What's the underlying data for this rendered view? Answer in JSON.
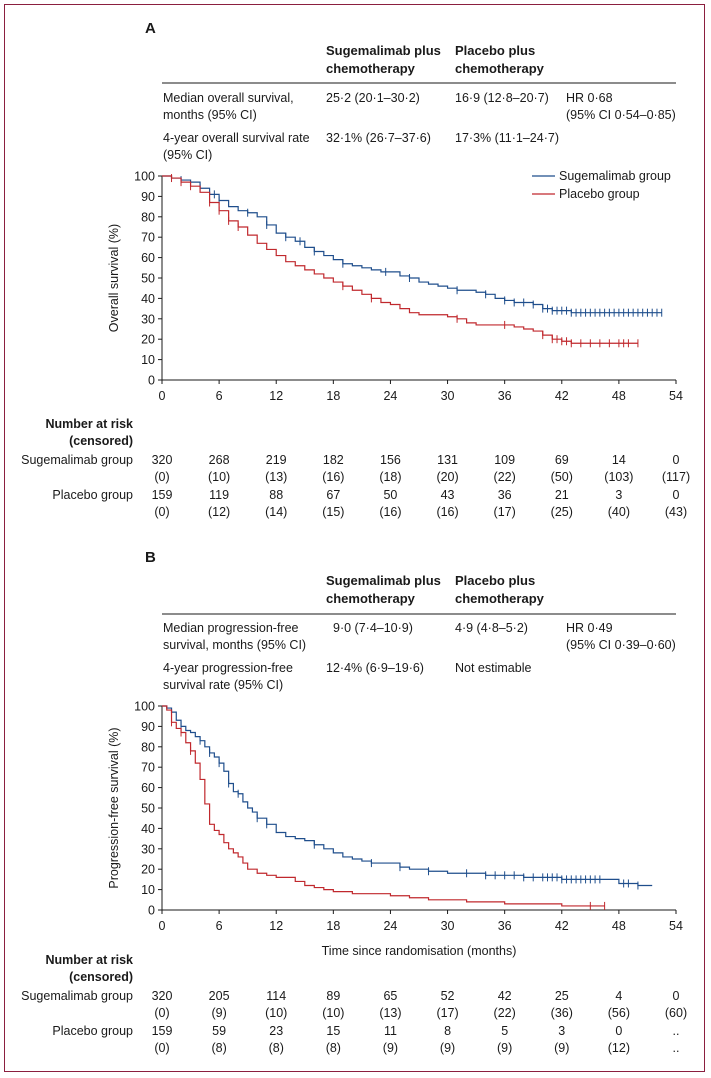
{
  "panels": [
    {
      "letter": "A",
      "table": {
        "col1": [
          "Sugemalimab plus",
          "chemotherapy"
        ],
        "col2": [
          "Placebo plus",
          "chemotherapy"
        ],
        "rows": [
          {
            "label": [
              "Median overall survival,",
              "months (95% CI)"
            ],
            "v1": "25·2 (20·1–30·2)",
            "v2": "16·9 (12·8–20·7)",
            "hr": [
              "HR 0·68",
              "(95% CI 0·54–0·85)"
            ]
          },
          {
            "label": [
              "4-year overall survival rate",
              "(95% CI)"
            ],
            "v1": "32·1% (26·7–37·6)",
            "v2": "17·3% (11·1–24·7)",
            "hr": [
              "",
              ""
            ]
          }
        ]
      },
      "legend": [
        "Sugemalimab group",
        "Placebo group"
      ],
      "risk_header": [
        "Number at risk",
        "(censored)"
      ],
      "risk": [
        {
          "group": "Sugemalimab group",
          "n": [
            "320",
            "268",
            "219",
            "182",
            "156",
            "131",
            "109",
            "69",
            "14",
            "0"
          ],
          "c": [
            "(0)",
            "(10)",
            "(13)",
            "(16)",
            "(18)",
            "(20)",
            "(22)",
            "(50)",
            "(103)",
            "(117)"
          ]
        },
        {
          "group": "Placebo group",
          "n": [
            "159",
            "119",
            "88",
            "67",
            "50",
            "43",
            "36",
            "21",
            "3",
            "0"
          ],
          "c": [
            "(0)",
            "(12)",
            "(14)",
            "(15)",
            "(16)",
            "(16)",
            "(17)",
            "(25)",
            "(40)",
            "(43)"
          ]
        }
      ]
    },
    {
      "letter": "B",
      "table": {
        "col1": [
          "Sugemalimab plus",
          "chemotherapy"
        ],
        "col2": [
          "Placebo plus",
          "chemotherapy"
        ],
        "rows": [
          {
            "label": [
              "Median progression-free",
              "survival, months (95% CI)"
            ],
            "v1": "9·0 (7·4–10·9)",
            "v2": "4·9 (4·8–5·2)",
            "hr": [
              "HR 0·49",
              "(95% CI 0·39–0·60)"
            ]
          },
          {
            "label": [
              "4-year progression-free",
              "survival rate (95% CI)"
            ],
            "v1": "12·4% (6·9–19·6)",
            "v2": "Not estimable",
            "hr": [
              "",
              ""
            ]
          }
        ]
      },
      "legend": [],
      "risk_header": [
        "Number at risk",
        "(censored)"
      ],
      "risk": [
        {
          "group": "Sugemalimab group",
          "n": [
            "320",
            "205",
            "114",
            "89",
            "65",
            "52",
            "42",
            "25",
            "4",
            "0"
          ],
          "c": [
            "(0)",
            "(9)",
            "(10)",
            "(10)",
            "(13)",
            "(17)",
            "(22)",
            "(36)",
            "(56)",
            "(60)"
          ]
        },
        {
          "group": "Placebo group",
          "n": [
            "159",
            "59",
            "23",
            "15",
            "11",
            "8",
            "5",
            "3",
            "0",
            ".."
          ],
          "c": [
            "(0)",
            "(8)",
            "(8)",
            "(8)",
            "(9)",
            "(9)",
            "(9)",
            "(9)",
            "(12)",
            ".."
          ]
        }
      ]
    }
  ],
  "colors": {
    "sugemalimab": "#1f4e8c",
    "placebo": "#c0282d",
    "frame": "#8b1f3f"
  },
  "chart_data": [
    {
      "type": "line",
      "title": "A",
      "xlabel": "",
      "ylabel": "Overall survival (%)",
      "xlim": [
        0,
        54
      ],
      "ylim": [
        0,
        100
      ],
      "xticks": [
        0,
        6,
        12,
        18,
        24,
        30,
        36,
        42,
        48,
        54
      ],
      "yticks": [
        0,
        10,
        20,
        30,
        40,
        50,
        60,
        70,
        80,
        90,
        100
      ],
      "series": [
        {
          "name": "Sugemalimab group",
          "color": "#1f4e8c",
          "x": [
            0,
            1,
            2,
            3,
            4,
            5,
            6,
            7,
            8,
            9,
            10,
            11,
            12,
            13,
            14,
            15,
            16,
            17,
            18,
            19,
            20,
            21,
            22,
            23,
            24,
            25,
            26,
            27,
            28,
            29,
            30,
            31,
            32,
            33,
            34,
            35,
            36,
            37,
            38,
            39,
            40,
            41,
            42,
            43,
            44,
            45,
            46,
            48,
            50,
            52.5
          ],
          "y": [
            100,
            99,
            98,
            97,
            94,
            91,
            88,
            85,
            83,
            82,
            80,
            76,
            72,
            70,
            68,
            65,
            63,
            61,
            59,
            57,
            56,
            55,
            54,
            53,
            53,
            51,
            50,
            48,
            47,
            46,
            45,
            44,
            44,
            43,
            42,
            40,
            39,
            38,
            38,
            37,
            35,
            34,
            34,
            33,
            33,
            33,
            33,
            33,
            33,
            33
          ]
        },
        {
          "name": "Placebo group",
          "color": "#c0282d",
          "x": [
            0,
            1,
            2,
            3,
            4,
            5,
            6,
            7,
            8,
            9,
            10,
            11,
            12,
            13,
            14,
            15,
            16,
            17,
            18,
            19,
            20,
            21,
            22,
            23,
            24,
            25,
            26,
            27,
            28,
            29,
            30,
            31,
            32,
            33,
            34,
            35,
            36,
            37,
            38,
            39,
            40,
            41,
            42,
            43,
            44,
            45,
            46,
            48,
            50
          ],
          "y": [
            100,
            99,
            97,
            95,
            92,
            87,
            83,
            78,
            75,
            71,
            67,
            64,
            61,
            58,
            56,
            54,
            52,
            50,
            48,
            46,
            44,
            42,
            40,
            38,
            37,
            35,
            33,
            32,
            32,
            32,
            31,
            30,
            28,
            27,
            27,
            27,
            27,
            26,
            25,
            24,
            22,
            20,
            19,
            18,
            18,
            18,
            18,
            18,
            18
          ]
        }
      ],
      "censor_x": {
        "Sugemalimab group": [
          2,
          4,
          5.5,
          6,
          9,
          11,
          13,
          14.5,
          16,
          19,
          23.5,
          26,
          31,
          34,
          36,
          37,
          38,
          39,
          40,
          40.5,
          41,
          41.5,
          42,
          42.5,
          43,
          43.5,
          44,
          44.5,
          45,
          45.5,
          46,
          46.5,
          47,
          47.5,
          48,
          48.5,
          49,
          49.5,
          50,
          50.5,
          51,
          51.5,
          52,
          52.5
        ],
        "Placebo group": [
          1,
          2,
          3,
          5,
          6,
          7,
          8,
          19,
          22,
          31,
          36,
          40,
          41,
          41.5,
          42,
          42.5,
          43,
          44,
          45,
          46,
          47,
          48,
          48.5,
          49,
          50
        ]
      }
    },
    {
      "type": "line",
      "title": "B",
      "xlabel": "Time since randomisation (months)",
      "ylabel": "Progression-free survival (%)",
      "xlim": [
        0,
        54
      ],
      "ylim": [
        0,
        100
      ],
      "xticks": [
        0,
        6,
        12,
        18,
        24,
        30,
        36,
        42,
        48,
        54
      ],
      "yticks": [
        0,
        10,
        20,
        30,
        40,
        50,
        60,
        70,
        80,
        90,
        100
      ],
      "series": [
        {
          "name": "Sugemalimab group",
          "color": "#1f4e8c",
          "x": [
            0,
            0.5,
            1,
            1.5,
            2,
            2.5,
            3,
            3.5,
            4,
            4.5,
            5,
            5.5,
            6,
            6.5,
            7,
            7.5,
            8,
            8.5,
            9,
            9.5,
            10,
            11,
            12,
            13,
            14,
            15,
            16,
            17,
            18,
            19,
            20,
            21,
            22,
            23,
            24,
            25,
            26,
            27,
            28,
            29,
            30,
            32,
            34,
            36,
            38,
            40,
            42,
            44,
            46,
            48,
            50,
            51.5
          ],
          "y": [
            100,
            99,
            97,
            93,
            90,
            88,
            87,
            85,
            83,
            80,
            77,
            75,
            72,
            68,
            62,
            58,
            57,
            53,
            50,
            48,
            45,
            42,
            38,
            36,
            35,
            34,
            32,
            30,
            28,
            26,
            25,
            24,
            23,
            23,
            23,
            21,
            20,
            20,
            19,
            19,
            18,
            18,
            17,
            17,
            16,
            16,
            15,
            15,
            15,
            13,
            12,
            12
          ]
        },
        {
          "name": "Placebo group",
          "color": "#c0282d",
          "x": [
            0,
            0.5,
            1,
            1.5,
            2,
            2.5,
            3,
            3.5,
            4,
            4.5,
            5,
            5.5,
            6,
            6.5,
            7,
            7.5,
            8,
            8.5,
            9,
            10,
            11,
            12,
            13,
            14,
            15,
            16,
            17,
            18,
            19,
            20,
            21,
            22,
            24,
            26,
            28,
            30,
            32,
            34,
            36,
            38,
            40,
            42,
            44,
            46.5
          ],
          "y": [
            100,
            98,
            92,
            89,
            87,
            82,
            78,
            72,
            64,
            52,
            42,
            39,
            37,
            33,
            30,
            28,
            26,
            23,
            20,
            18,
            17,
            16,
            16,
            14,
            12,
            11,
            10,
            9,
            9,
            8,
            8,
            8,
            7,
            6,
            5,
            5,
            4,
            4,
            3,
            3,
            3,
            2,
            2,
            2
          ]
        }
      ],
      "censor_x": {
        "Sugemalimab group": [
          1,
          2,
          4,
          5,
          6,
          7,
          8,
          10,
          11,
          16,
          22,
          25,
          28,
          32,
          34,
          35,
          36,
          37,
          38,
          39,
          40,
          40.5,
          41,
          41.5,
          42,
          42.5,
          43,
          43.5,
          44,
          44.5,
          45,
          45.5,
          46,
          48.5,
          49,
          50
        ],
        "Placebo group": [
          1,
          2,
          3,
          45,
          46.5
        ]
      }
    }
  ]
}
